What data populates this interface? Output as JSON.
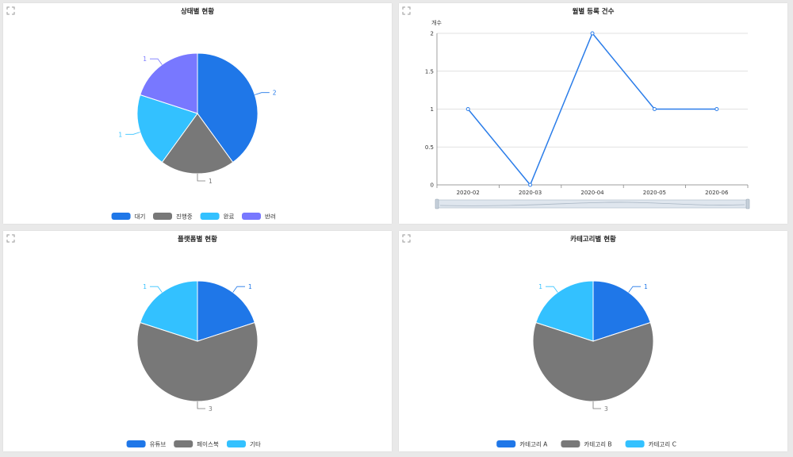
{
  "panels": [
    {
      "expand_icon": "expand-icon",
      "chart_data": {
        "type": "pie",
        "title": "상태별 현황",
        "categories": [
          "대기",
          "진행중",
          "완료",
          "반려"
        ],
        "values": [
          2,
          1,
          1,
          1
        ],
        "colors": [
          "#1f77e8",
          "#787878",
          "#33c1ff",
          "#7878ff"
        ],
        "legend": "bottom"
      }
    },
    {
      "expand_icon": "expand-icon",
      "chart_data": {
        "type": "line",
        "title": "월별 등록 건수",
        "ylabel": "개수",
        "categories": [
          "2020-02",
          "2020-03",
          "2020-04",
          "2020-05",
          "2020-06"
        ],
        "series": [
          {
            "values": [
              1,
              0,
              2,
              1,
              1
            ]
          }
        ],
        "y_ticks": [
          "0",
          "0.5",
          "1",
          "1.5",
          "2"
        ],
        "ylim": [
          0,
          2
        ],
        "grid": true,
        "color": "#2b7de9",
        "slider": true
      }
    },
    {
      "expand_icon": "expand-icon",
      "chart_data": {
        "type": "pie",
        "title": "플랫폼별 현황",
        "categories": [
          "유튜브",
          "페이스북",
          "기타"
        ],
        "values": [
          1,
          3,
          1
        ],
        "colors": [
          "#1f77e8",
          "#787878",
          "#33c1ff"
        ],
        "legend": "bottom"
      }
    },
    {
      "expand_icon": "expand-icon",
      "chart_data": {
        "type": "pie",
        "title": "카테고리별 현황",
        "categories": [
          "카테고리 A",
          "카테고리 B",
          "카테고리 C"
        ],
        "values": [
          1,
          3,
          1
        ],
        "colors": [
          "#1f77e8",
          "#787878",
          "#33c1ff"
        ],
        "legend": "bottom"
      }
    }
  ]
}
